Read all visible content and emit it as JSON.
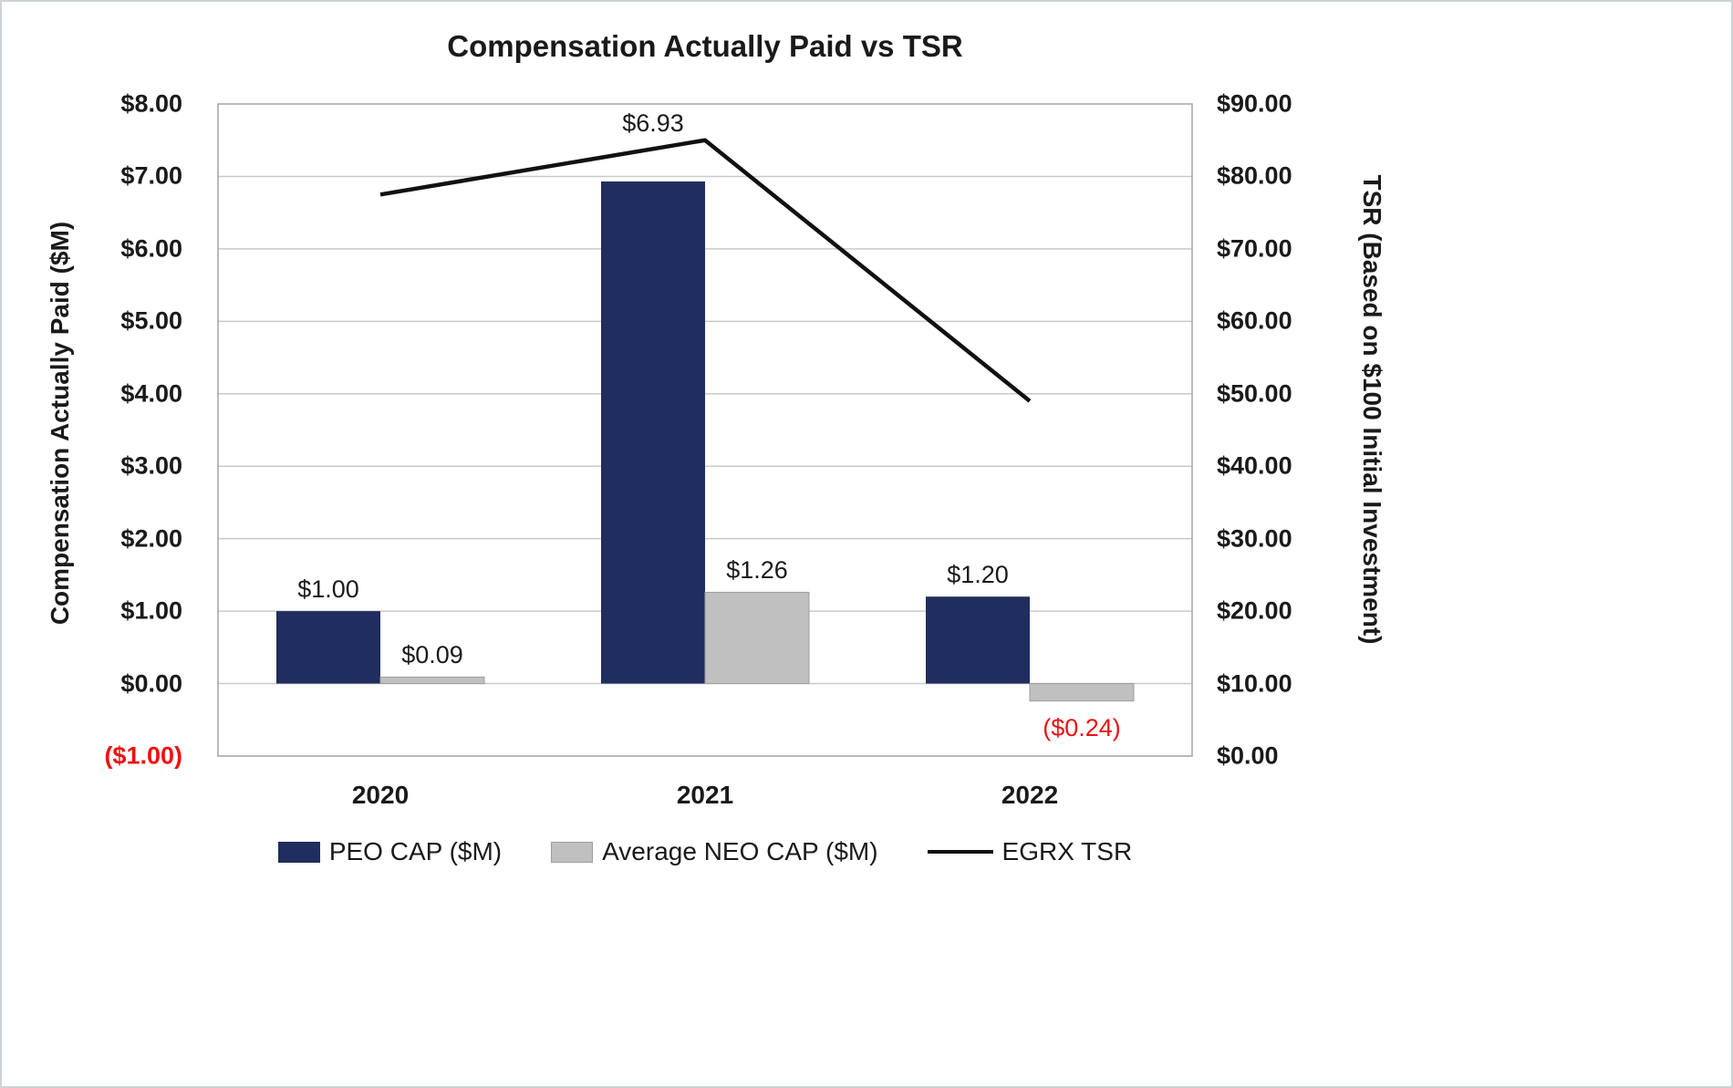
{
  "chart_data": {
    "type": "bar",
    "subtype": "bar-line-combo-dual-axis",
    "title": "Compensation Actually Paid vs TSR",
    "categories": [
      "2020",
      "2021",
      "2022"
    ],
    "series": [
      {
        "name": "PEO CAP ($M)",
        "type": "bar",
        "axis": "left",
        "color": "#1f2e5e",
        "values": [
          1.0,
          6.93,
          1.2
        ],
        "labels": [
          "$1.00",
          "$6.93",
          "$1.20"
        ]
      },
      {
        "name": "Average NEO CAP ($M)",
        "type": "bar",
        "axis": "left",
        "color": "#c0c0c0",
        "border": "#9e9e9e",
        "values": [
          0.09,
          1.26,
          -0.24
        ],
        "labels": [
          "$0.09",
          "$1.26",
          "($0.24)"
        ]
      },
      {
        "name": "EGRX TSR",
        "type": "line",
        "axis": "right",
        "color": "#111111",
        "values": [
          77.5,
          85.0,
          49.0
        ]
      }
    ],
    "left_axis": {
      "title": "Compensation Actually Paid ($M)",
      "min": -1,
      "max": 8,
      "step": 1,
      "ticks": [
        "$8.00",
        "$7.00",
        "$6.00",
        "$5.00",
        "$4.00",
        "$3.00",
        "$2.00",
        "$1.00",
        "$0.00",
        "($1.00)"
      ]
    },
    "right_axis": {
      "title": "TSR (Based on $100 Initial Investment)",
      "min": 0,
      "max": 90,
      "step": 10,
      "ticks": [
        "$90.00",
        "$80.00",
        "$70.00",
        "$60.00",
        "$50.00",
        "$40.00",
        "$30.00",
        "$20.00",
        "$10.00",
        "$0.00"
      ]
    },
    "grid": true,
    "legend_position": "bottom",
    "colors": {
      "text": "#1a1a1a",
      "negative": "#ee1111",
      "gridline": "#c9c9c9",
      "plot_border": "#a3a3a3"
    }
  }
}
